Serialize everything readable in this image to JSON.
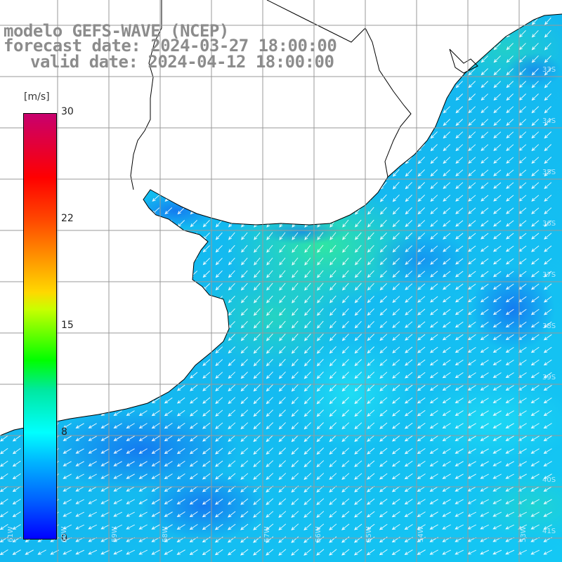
{
  "title": {
    "line1": "modelo GEFS-WAVE (NCEP)",
    "line2": "forecast date: 2024-03-27 18:00:00",
    "line3": "valid date: 2024-04-12 18:00:00"
  },
  "colorbar": {
    "unit": "[m/s]",
    "ticks": [
      "30",
      "22",
      "15",
      "8",
      "0"
    ],
    "range": [
      0,
      30
    ]
  },
  "colors": {
    "land": "#ffffff",
    "coast": "#000000",
    "grid": "#999999",
    "arrows": "#ffffff",
    "title": "#8c8c8c"
  },
  "grid_labels": {
    "lat": [
      "33S",
      "34S",
      "35S",
      "36S",
      "37S",
      "38S",
      "39S",
      "40S",
      "41S"
    ],
    "lon": [
      "61W",
      "60W",
      "59W",
      "58W",
      "57W",
      "56W",
      "55W",
      "54W",
      "53W"
    ]
  },
  "wind_field": {
    "quantity": "wind speed and direction",
    "dominant_direction": "from northeast",
    "speed_range_shown": [
      3,
      11
    ]
  }
}
